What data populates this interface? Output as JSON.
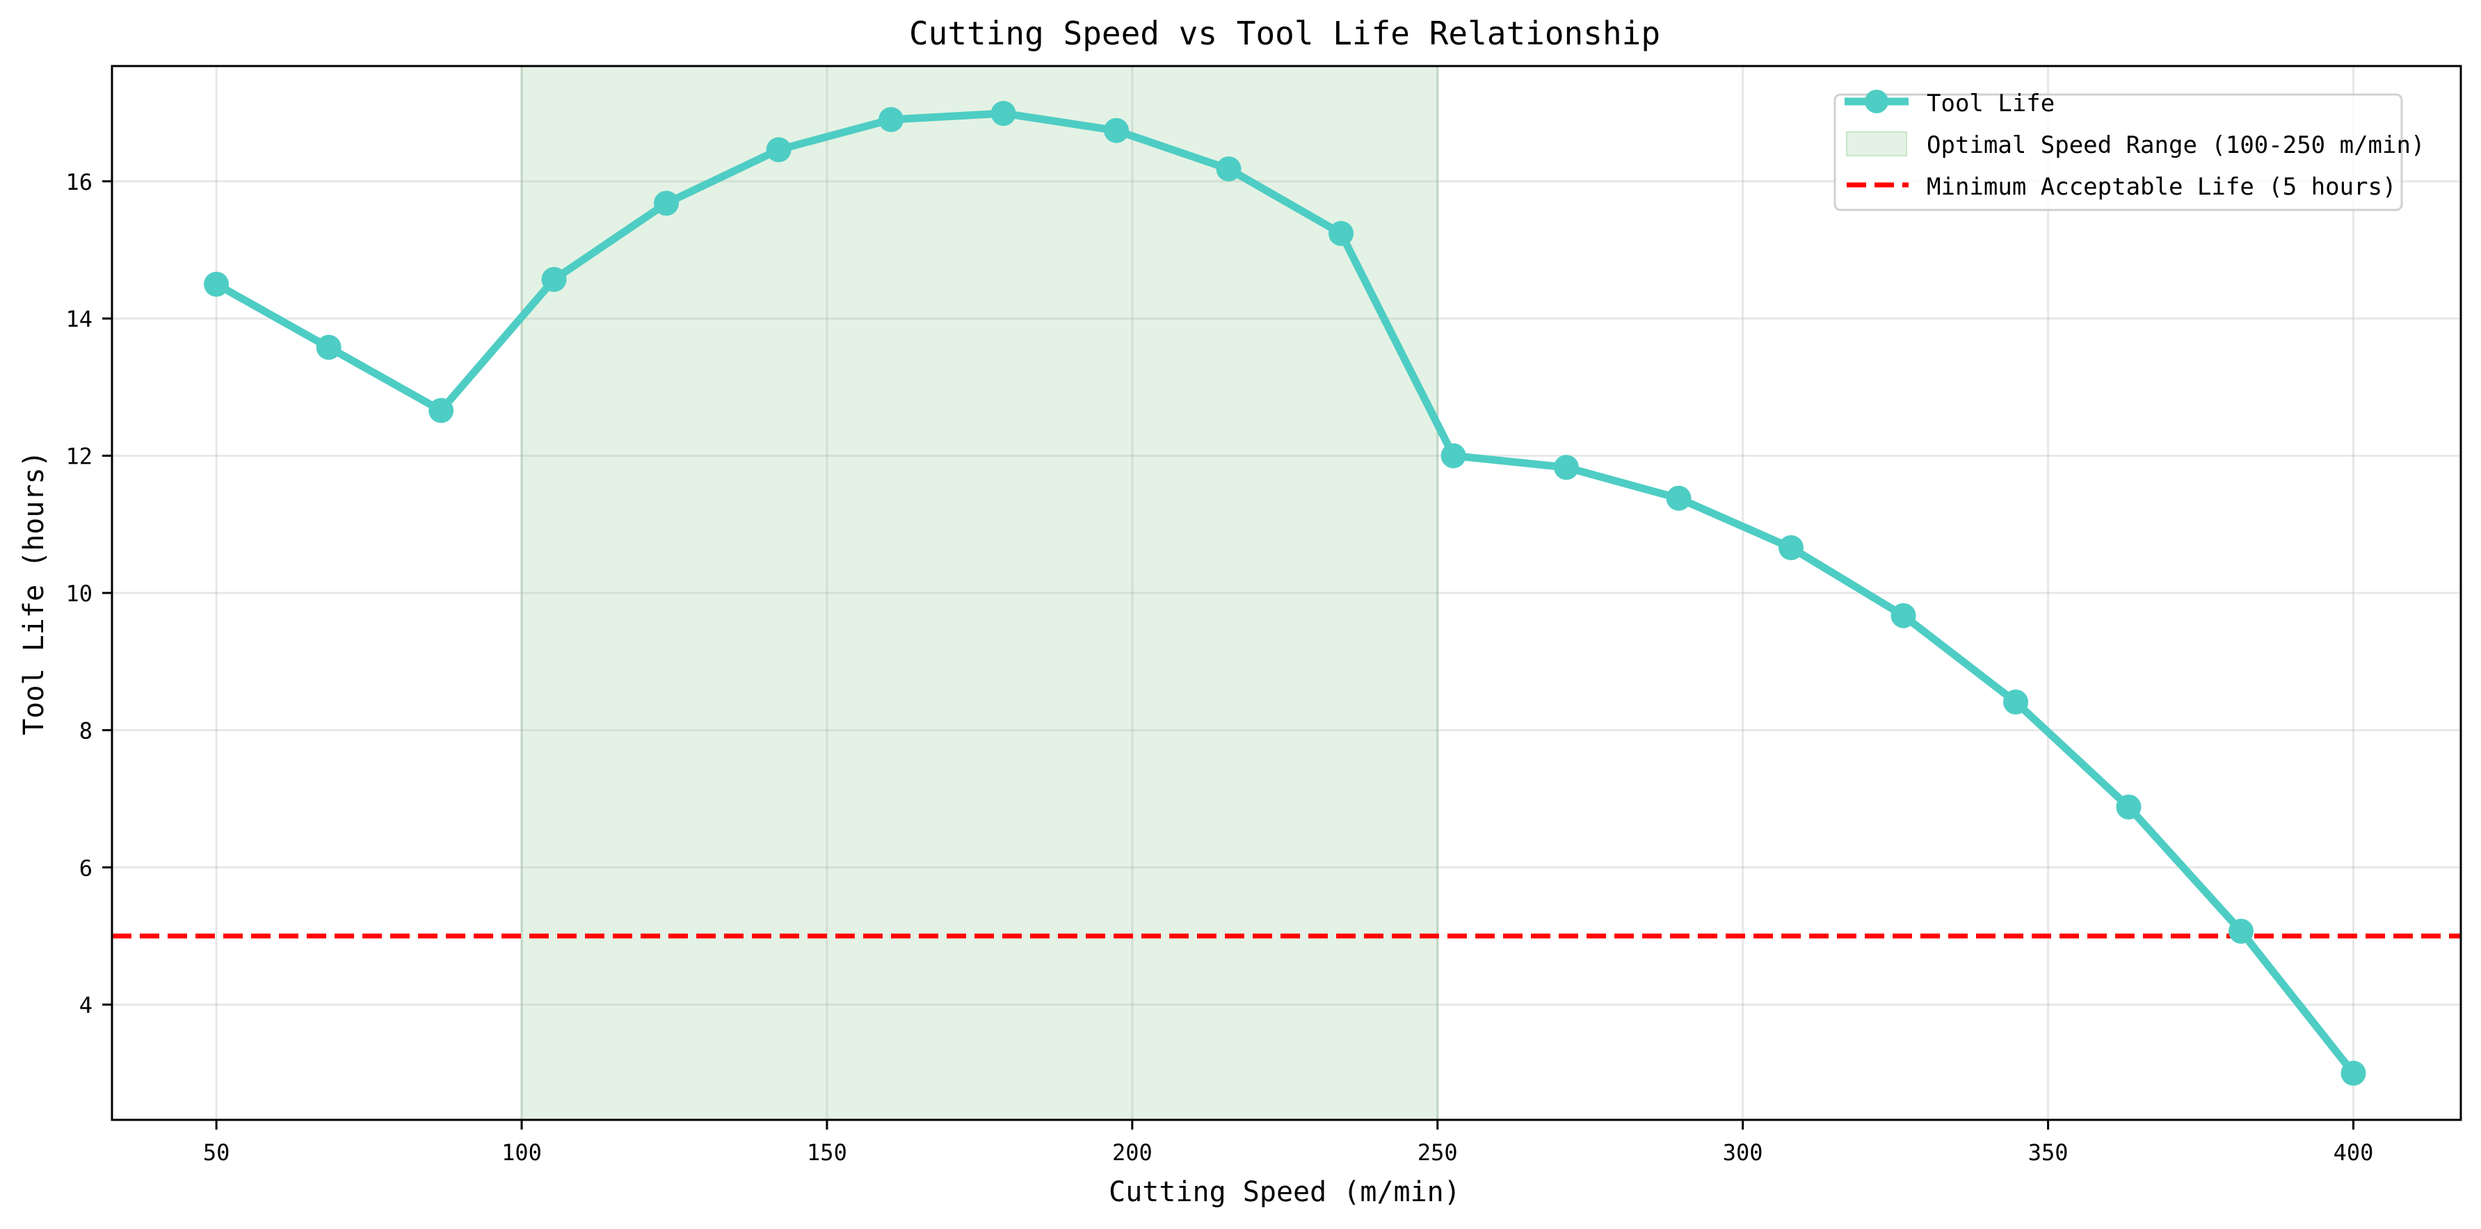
{
  "chart_data": {
    "type": "line",
    "title": "Cutting Speed vs Tool Life Relationship",
    "xlabel": "Cutting Speed (m/min)",
    "ylabel": "Tool Life (hours)",
    "xlim": [
      32.9,
      417.6
    ],
    "ylim": [
      2.32,
      17.68
    ],
    "xticks": [
      50,
      100,
      150,
      200,
      250,
      300,
      350,
      400
    ],
    "yticks": [
      4,
      6,
      8,
      10,
      12,
      14,
      16
    ],
    "grid": true,
    "legend_position": "upper right",
    "series": [
      {
        "name": "Tool Life",
        "color": "#4ECDC4",
        "marker": "circle",
        "x": [
          50.0,
          68.4,
          86.8,
          105.3,
          123.7,
          142.1,
          160.5,
          178.9,
          197.4,
          215.8,
          234.2,
          252.6,
          271.1,
          289.5,
          307.9,
          326.3,
          344.7,
          363.2,
          381.6,
          400.0
        ],
        "values": [
          14.5,
          13.58,
          12.66,
          14.57,
          15.68,
          16.46,
          16.9,
          16.99,
          16.74,
          16.18,
          15.24,
          12.0,
          11.83,
          11.38,
          10.66,
          9.67,
          8.41,
          6.88,
          5.07,
          3.0
        ]
      }
    ],
    "annotations": [
      {
        "type": "span",
        "label": "Optimal Speed Range (100-250 m/min)",
        "xmin": 100,
        "xmax": 250,
        "color": "#C8E6C9"
      },
      {
        "type": "hline",
        "label": "Minimum Acceptable Life (5 hours)",
        "y": 5,
        "color": "#FF0000",
        "style": "dashed"
      }
    ]
  },
  "legend": {
    "items": [
      {
        "label": "Tool Life"
      },
      {
        "label": "Optimal Speed Range (100-250 m/min)"
      },
      {
        "label": "Minimum Acceptable Life (5 hours)"
      }
    ]
  }
}
